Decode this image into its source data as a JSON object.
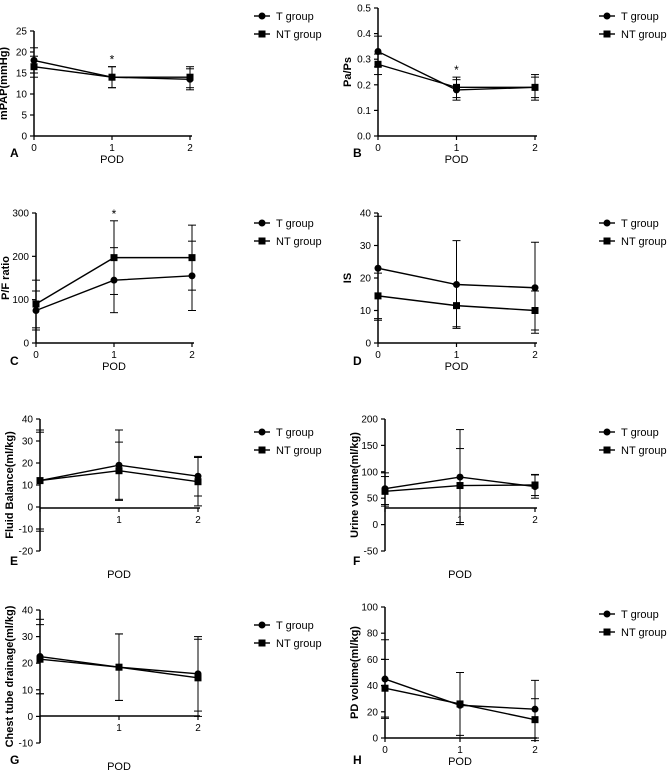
{
  "legend": {
    "t_group": "T group",
    "nt_group": "NT group"
  },
  "xlabel": "POD",
  "chart_data": [
    {
      "type": "line",
      "panel": "A",
      "ylabel": "mPAP(mmHg)",
      "xlabel": "POD",
      "x": [
        0,
        1,
        2
      ],
      "xticks": [
        "0",
        "1",
        "2"
      ],
      "ylim": [
        0,
        25
      ],
      "yticks": [
        "0",
        "5",
        "10",
        "15",
        "20",
        "25"
      ],
      "series": [
        {
          "name": "T group",
          "marker": "circle",
          "values": [
            18,
            14,
            13.5
          ],
          "errors": [
            3,
            2.5,
            2.5
          ]
        },
        {
          "name": "NT group",
          "marker": "square",
          "values": [
            16.5,
            14,
            14
          ],
          "errors": [
            2.5,
            2.5,
            2.5
          ]
        }
      ],
      "annotations": [
        {
          "x": 1,
          "text": "*"
        }
      ]
    },
    {
      "type": "line",
      "panel": "B",
      "ylabel": "Pa/Ps",
      "xlabel": "POD",
      "x": [
        0,
        1,
        2
      ],
      "xticks": [
        "0",
        "1",
        "2"
      ],
      "ylim": [
        0,
        0.5
      ],
      "yticks": [
        "0.0",
        "0.1",
        "0.2",
        "0.3",
        "0.4",
        "0.5"
      ],
      "series": [
        {
          "name": "T group",
          "marker": "circle",
          "values": [
            0.33,
            0.18,
            0.19
          ],
          "errors": [
            0.06,
            0.04,
            0.04
          ]
        },
        {
          "name": "NT group",
          "marker": "square",
          "values": [
            0.28,
            0.19,
            0.19
          ],
          "errors": [
            0.04,
            0.04,
            0.05
          ]
        }
      ],
      "annotations": [
        {
          "x": 1,
          "text": "*"
        }
      ]
    },
    {
      "type": "line",
      "panel": "C",
      "ylabel": "P/F ratio",
      "xlabel": "POD",
      "x": [
        0,
        1,
        2
      ],
      "xticks": [
        "0",
        "1",
        "2"
      ],
      "ylim": [
        0,
        300
      ],
      "yticks": [
        "0",
        "100",
        "200",
        "300"
      ],
      "series": [
        {
          "name": "T group",
          "marker": "circle",
          "values": [
            75,
            145,
            155
          ],
          "errors": [
            45,
            75,
            80
          ]
        },
        {
          "name": "NT group",
          "marker": "square",
          "values": [
            90,
            197,
            197
          ],
          "errors": [
            55,
            85,
            75
          ]
        }
      ],
      "annotations": [
        {
          "x": 1,
          "text": "*"
        }
      ]
    },
    {
      "type": "line",
      "panel": "D",
      "ylabel": "IS",
      "xlabel": "POD",
      "x": [
        0,
        1,
        2
      ],
      "xticks": [
        "0",
        "1",
        "2"
      ],
      "ylim": [
        0,
        40
      ],
      "yticks": [
        "0",
        "10",
        "20",
        "30",
        "40"
      ],
      "series": [
        {
          "name": "T group",
          "marker": "circle",
          "values": [
            23,
            18,
            17
          ],
          "errors": [
            16,
            13.5,
            14
          ]
        },
        {
          "name": "NT group",
          "marker": "square",
          "values": [
            14.5,
            11.5,
            10
          ],
          "errors": [
            7,
            6.5,
            6
          ]
        }
      ],
      "annotations": []
    },
    {
      "type": "line",
      "panel": "E",
      "ylabel": "Fluid Balance(ml/kg)",
      "xlabel": "POD",
      "x": [
        0,
        1,
        2
      ],
      "xticks": [
        "",
        "1",
        "2"
      ],
      "ylim": [
        -20,
        40
      ],
      "yticks": [
        "-20",
        "-10",
        "0",
        "10",
        "20",
        "30",
        "40"
      ],
      "series": [
        {
          "name": "T group",
          "marker": "circle",
          "values": [
            12,
            19,
            14
          ],
          "errors": [
            23,
            16,
            9
          ]
        },
        {
          "name": "NT group",
          "marker": "square",
          "values": [
            12,
            16.5,
            11.5
          ],
          "errors": [
            22,
            13,
            11
          ]
        }
      ],
      "annotations": []
    },
    {
      "type": "line",
      "panel": "F",
      "ylabel": "Urine volume(ml/kg)",
      "xlabel": "POD",
      "x": [
        0,
        1,
        2
      ],
      "xticks": [
        "",
        "1",
        "2"
      ],
      "ylim": [
        -50,
        200
      ],
      "yticks": [
        "-50",
        "0",
        "50",
        "100",
        "150",
        "200"
      ],
      "series": [
        {
          "name": "T group",
          "marker": "circle",
          "values": [
            68,
            90,
            72
          ],
          "errors": [
            30,
            90,
            22
          ]
        },
        {
          "name": "NT group",
          "marker": "square",
          "values": [
            63,
            74,
            75
          ],
          "errors": [
            28,
            70,
            20
          ]
        }
      ],
      "annotations": []
    },
    {
      "type": "line",
      "panel": "G",
      "ylabel": "Chest tube drainage(ml/kg)",
      "xlabel": "POD",
      "x": [
        0,
        1,
        2
      ],
      "xticks": [
        "",
        "1",
        "2"
      ],
      "ylim": [
        -10,
        40
      ],
      "yticks": [
        "-10",
        "0",
        "10",
        "20",
        "30",
        "40"
      ],
      "series": [
        {
          "name": "T group",
          "marker": "circle",
          "values": [
            22.5,
            18.5,
            16
          ],
          "errors": [
            14,
            12.5,
            14
          ]
        },
        {
          "name": "NT group",
          "marker": "square",
          "values": [
            21.5,
            18.5,
            14.5
          ],
          "errors": [
            13,
            12.5,
            14.5
          ]
        }
      ],
      "annotations": []
    },
    {
      "type": "line",
      "panel": "H",
      "ylabel": "PD volume(ml/kg)",
      "xlabel": "POD",
      "x": [
        0,
        1,
        2
      ],
      "xticks": [
        "0",
        "1",
        "2"
      ],
      "ylim": [
        0,
        100
      ],
      "yticks": [
        "0",
        "20",
        "40",
        "60",
        "80",
        "100"
      ],
      "series": [
        {
          "name": "T group",
          "marker": "circle",
          "values": [
            45,
            25,
            22
          ],
          "errors": [
            30,
            25,
            22
          ]
        },
        {
          "name": "NT group",
          "marker": "square",
          "values": [
            38,
            26,
            14
          ],
          "errors": [
            22,
            24,
            16
          ]
        }
      ],
      "annotations": []
    }
  ]
}
